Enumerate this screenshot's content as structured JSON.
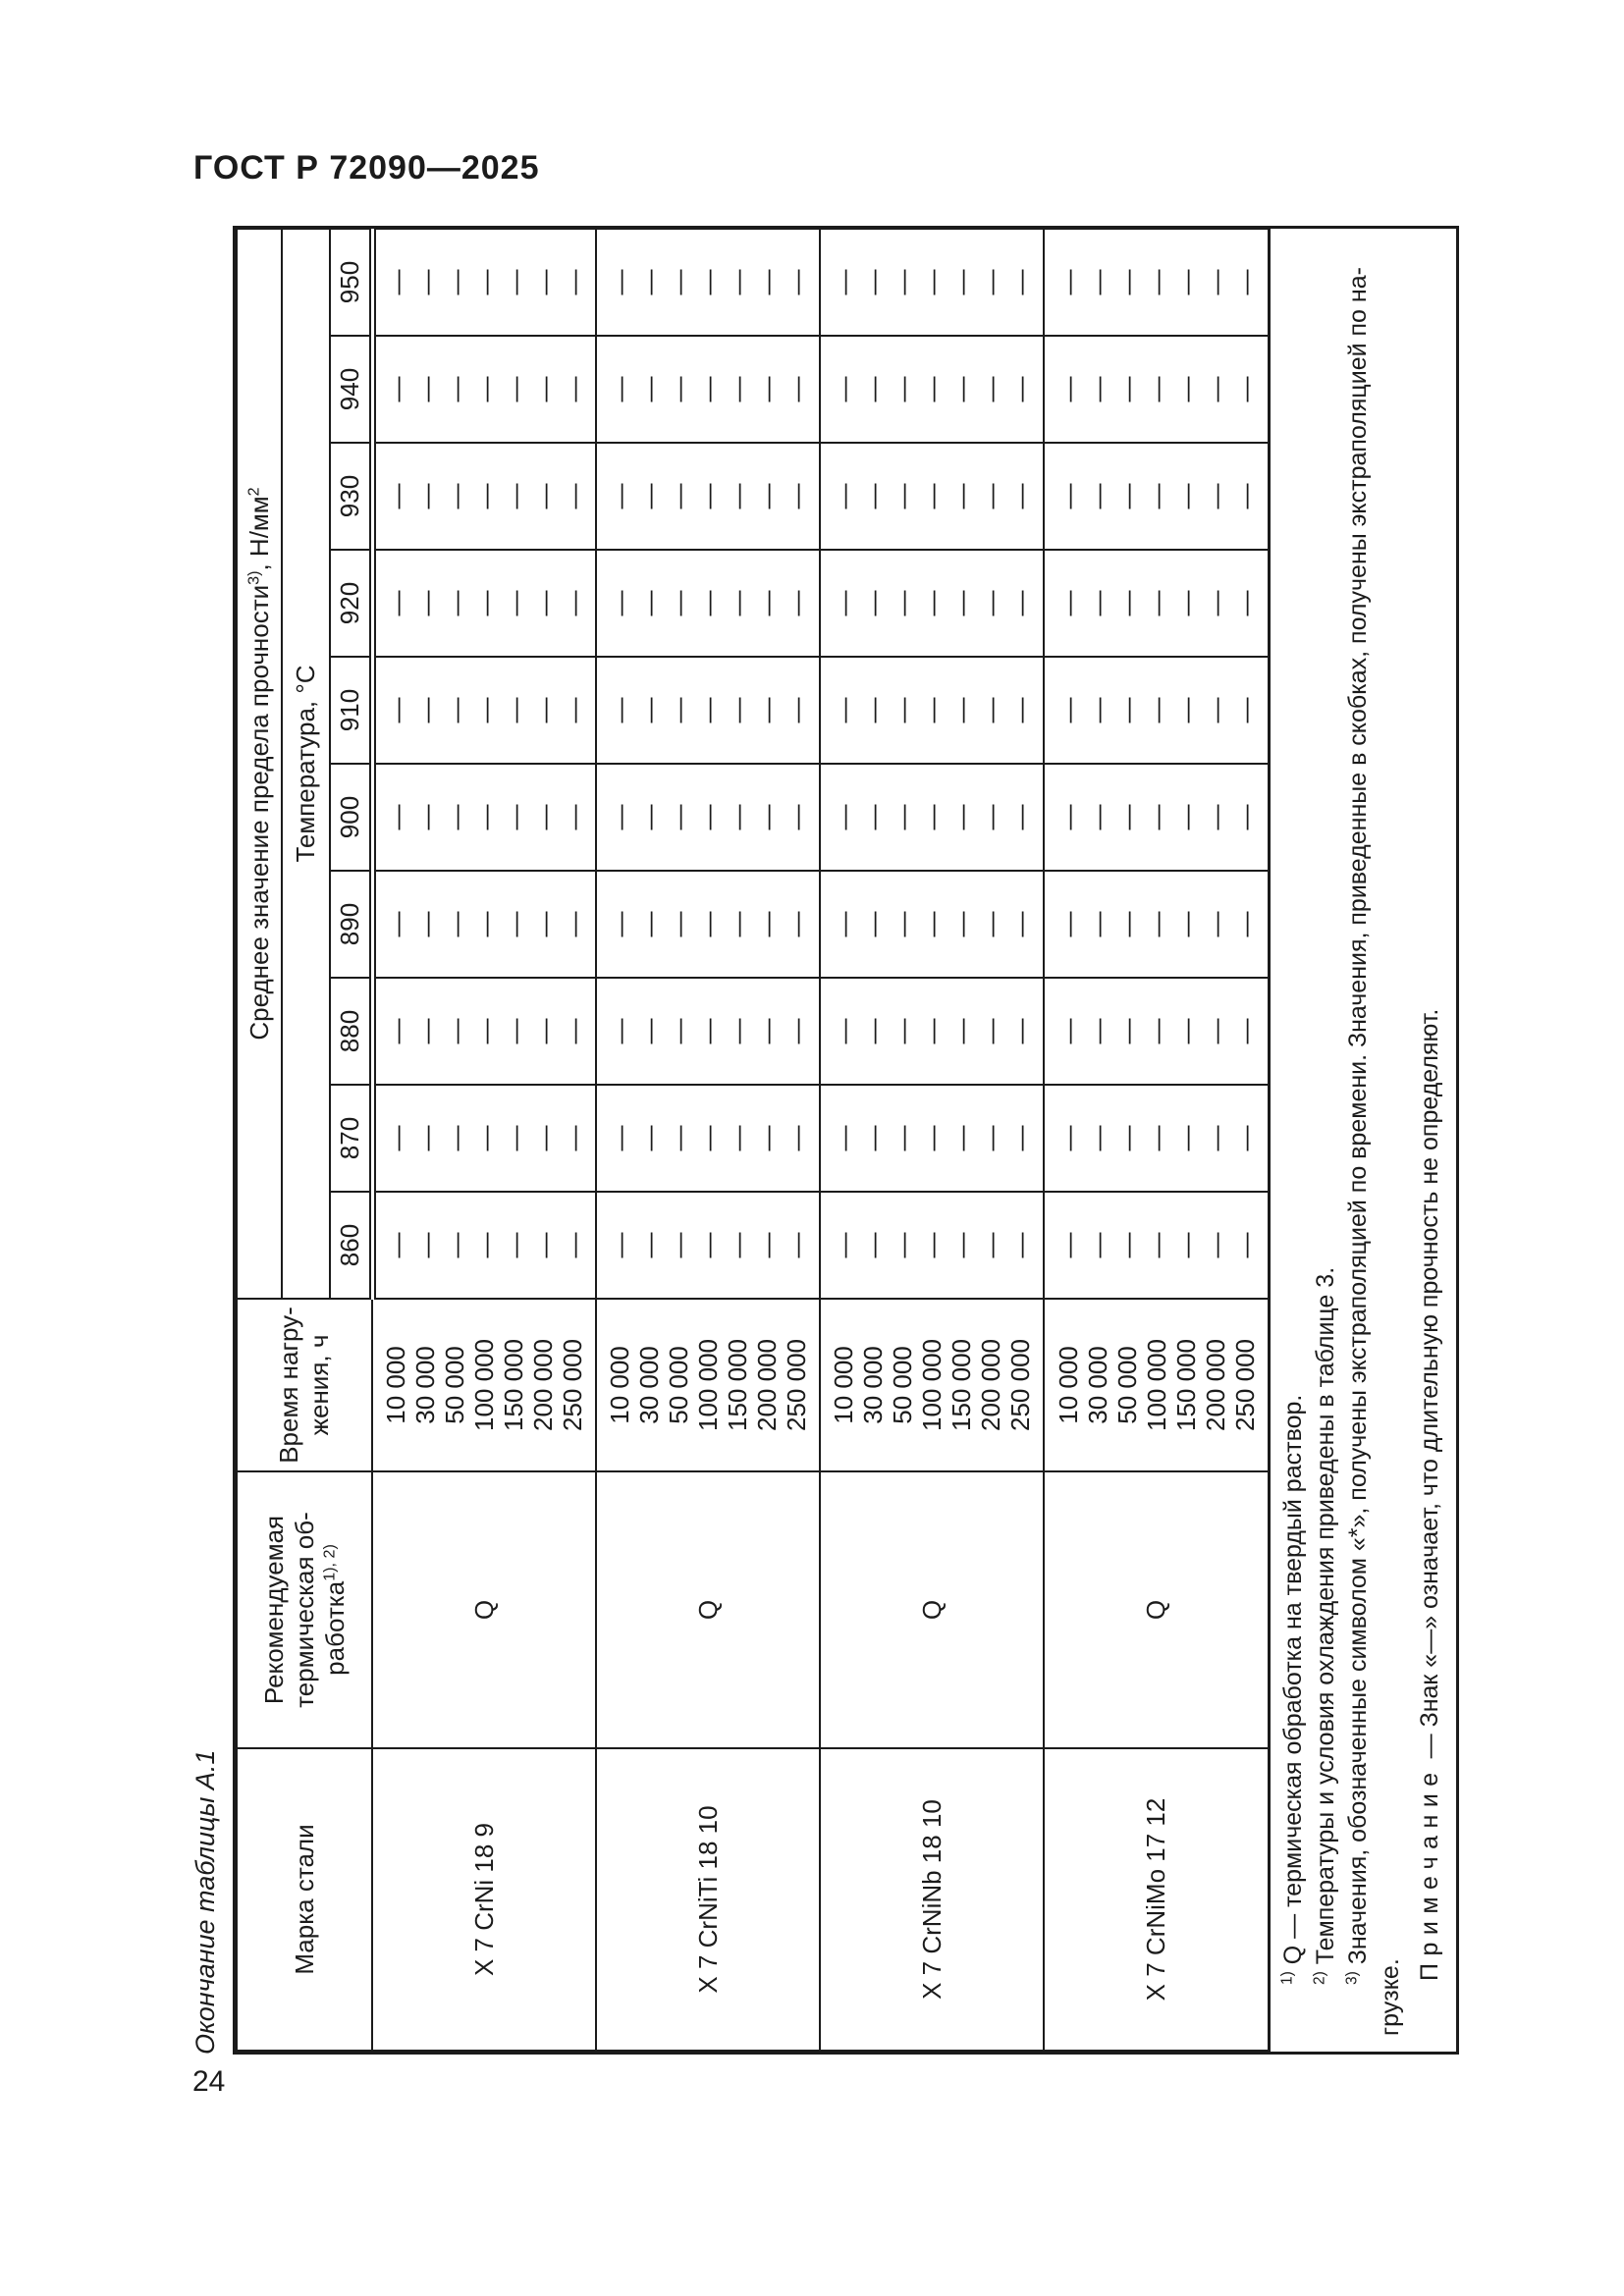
{
  "page": {
    "standard": "ГОСТ Р 72090—2025",
    "number": "24",
    "table_caption": "Окончание таблицы А.1"
  },
  "table": {
    "headers": {
      "grade": "Марка стали",
      "treatment_lines": "Рекомендуемая\nтермическая об-\nработка",
      "treatment_sup": "1), 2)",
      "time_lines": "Время нагру-\nжения, ч",
      "strength_text": "Среднее значение предела прочности",
      "strength_sup": "3)",
      "strength_unit": ", Н/мм",
      "strength_unit_sup": "2",
      "temperature_label": "Температура, °С"
    },
    "temperatures": [
      "860",
      "870",
      "880",
      "890",
      "900",
      "910",
      "920",
      "930",
      "940",
      "950"
    ],
    "load_times": [
      "10 000",
      "30 000",
      "50 000",
      "100 000",
      "150 000",
      "200 000",
      "250 000"
    ],
    "dash": "—",
    "groups": [
      {
        "grade": "X 7 CrNi 18 9",
        "treatment": "Q"
      },
      {
        "grade": "X 7 CrNiTi 18 10",
        "treatment": "Q"
      },
      {
        "grade": "X 7 CrNiNb 18 10",
        "treatment": "Q"
      },
      {
        "grade": "X 7 CrNiMo 17 12",
        "treatment": "Q"
      }
    ]
  },
  "footnotes": [
    {
      "sup": "1)",
      "text": "Q — термическая обработка на твердый раствор."
    },
    {
      "sup": "2)",
      "text": "Температуры и условия охлаждения приведены в таблице 3."
    },
    {
      "sup": "3)",
      "text": "Значения, обозначенные символом «*», получены экстраполяцией по времени. Значения, приведенные в скобках, получены экстраполяцией по на-"
    },
    {
      "sup": "",
      "text": "грузке."
    }
  ],
  "note": {
    "label": "Примечание",
    "text": " — Знак «—» означает, что длительную прочность не определяют."
  }
}
